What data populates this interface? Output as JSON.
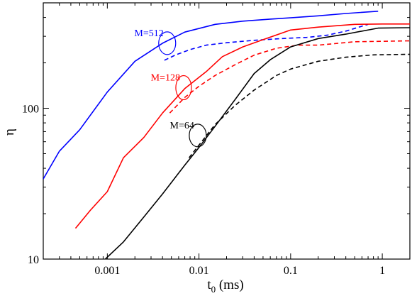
{
  "chart_data": {
    "type": "line",
    "x_scale": "log",
    "y_scale": "log",
    "xlim": [
      0.0002,
      2
    ],
    "ylim": [
      10,
      500
    ],
    "xlabel": "t",
    "xlabel_sub": "0",
    "xlabel_unit": " (ms)",
    "ylabel": "η",
    "x_ticks": [
      {
        "value": 0.001,
        "label": "0.001"
      },
      {
        "value": 0.01,
        "label": "0.01"
      },
      {
        "value": 0.1,
        "label": "0.1"
      },
      {
        "value": 1,
        "label": "1"
      }
    ],
    "y_ticks": [
      {
        "value": 10,
        "label": "10"
      },
      {
        "value": 100,
        "label": "100"
      }
    ],
    "series": [
      {
        "color": "#0000ff",
        "style": "solid",
        "points": [
          [
            0.0002,
            34
          ],
          [
            0.0003,
            52
          ],
          [
            0.0005,
            72
          ],
          [
            0.001,
            128
          ],
          [
            0.002,
            205
          ],
          [
            0.004,
            270
          ],
          [
            0.007,
            320
          ],
          [
            0.015,
            360
          ],
          [
            0.03,
            378
          ],
          [
            0.06,
            390
          ],
          [
            0.1,
            398
          ],
          [
            0.2,
            410
          ],
          [
            0.4,
            425
          ],
          [
            0.9,
            440
          ]
        ]
      },
      {
        "color": "#0000ff",
        "style": "dashed",
        "points": [
          [
            0.0042,
            208
          ],
          [
            0.0055,
            225
          ],
          [
            0.008,
            245
          ],
          [
            0.012,
            262
          ],
          [
            0.02,
            272
          ],
          [
            0.04,
            282
          ],
          [
            0.08,
            290
          ],
          [
            0.15,
            295
          ],
          [
            0.25,
            305
          ],
          [
            0.4,
            325
          ],
          [
            0.7,
            360
          ]
        ]
      },
      {
        "color": "#ff0000",
        "style": "solid",
        "points": [
          [
            0.00045,
            16
          ],
          [
            0.00065,
            21
          ],
          [
            0.001,
            28
          ],
          [
            0.0015,
            47
          ],
          [
            0.0025,
            64
          ],
          [
            0.004,
            93
          ],
          [
            0.007,
            135
          ],
          [
            0.012,
            175
          ],
          [
            0.018,
            220
          ],
          [
            0.03,
            255
          ],
          [
            0.05,
            285
          ],
          [
            0.1,
            330
          ],
          [
            0.2,
            345
          ],
          [
            0.5,
            360
          ],
          [
            1,
            362
          ],
          [
            2,
            362
          ]
        ]
      },
      {
        "color": "#ff0000",
        "style": "dashed",
        "points": [
          [
            0.0048,
            93
          ],
          [
            0.007,
            118
          ],
          [
            0.01,
            140
          ],
          [
            0.015,
            165
          ],
          [
            0.025,
            195
          ],
          [
            0.04,
            225
          ],
          [
            0.07,
            250
          ],
          [
            0.12,
            262
          ],
          [
            0.2,
            262
          ],
          [
            0.3,
            268
          ],
          [
            0.5,
            276
          ],
          [
            1,
            278
          ],
          [
            2,
            280
          ]
        ]
      },
      {
        "color": "#000000",
        "style": "solid",
        "points": [
          [
            0.00095,
            10
          ],
          [
            0.0015,
            13
          ],
          [
            0.0025,
            19
          ],
          [
            0.004,
            27
          ],
          [
            0.007,
            42
          ],
          [
            0.01,
            55
          ],
          [
            0.015,
            76
          ],
          [
            0.025,
            115
          ],
          [
            0.04,
            170
          ],
          [
            0.06,
            210
          ],
          [
            0.1,
            255
          ],
          [
            0.2,
            290
          ],
          [
            0.4,
            310
          ],
          [
            0.9,
            340
          ],
          [
            2,
            342
          ]
        ]
      },
      {
        "color": "#000000",
        "style": "dashed",
        "points": [
          [
            0.0078,
            47
          ],
          [
            0.01,
            57
          ],
          [
            0.015,
            78
          ],
          [
            0.025,
            105
          ],
          [
            0.04,
            132
          ],
          [
            0.07,
            165
          ],
          [
            0.1,
            182
          ],
          [
            0.2,
            205
          ],
          [
            0.4,
            218
          ],
          [
            0.8,
            226
          ],
          [
            2,
            228
          ]
        ]
      }
    ],
    "annotations": [
      {
        "text": "M=512",
        "color": "#0000ff",
        "x": 0.0045,
        "y": 270
      },
      {
        "text": "M=128",
        "color": "#ff0000",
        "x": 0.0068,
        "y": 137
      },
      {
        "text": "M=64",
        "color": "#000000",
        "x": 0.0097,
        "y": 66
      }
    ]
  }
}
